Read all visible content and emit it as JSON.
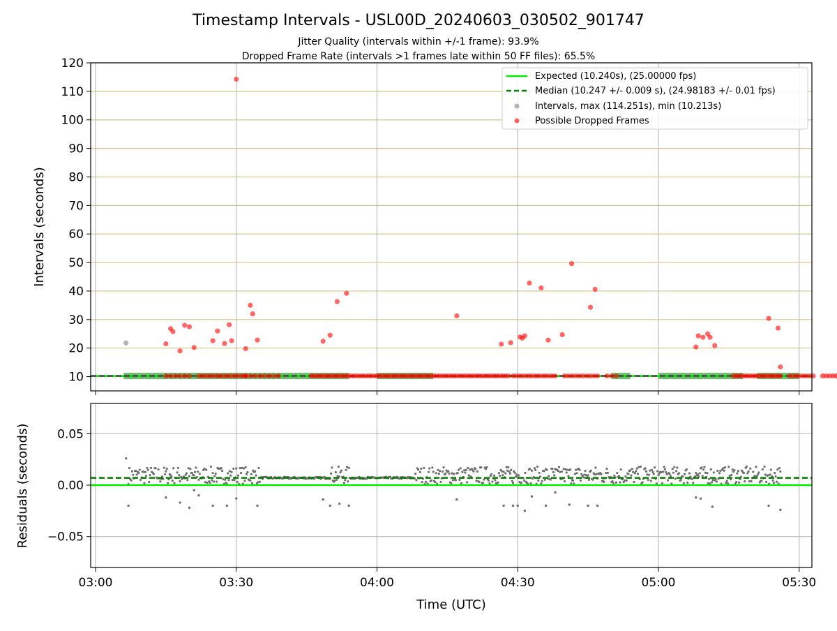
{
  "figure": {
    "title": "Timestamp Intervals - USL00D_20240603_030502_901747",
    "subtitle_1": "Jitter Quality (intervals within +/-1 frame): 93.9%",
    "subtitle_2": "Dropped Frame Rate (intervals >1 frames late within 50 FF files): 65.5%"
  },
  "colors": {
    "expected": "#00ee00",
    "median": "#008000",
    "intervals": "#808080",
    "dropped": "#ff0000",
    "hgrid": "#d4c48a",
    "vgrid": "#b0b0b0"
  },
  "chart_data": [
    {
      "type": "scatter",
      "ylabel": "Intervals (seconds)",
      "ylim": [
        5,
        120
      ],
      "xlim": [
        "03:00",
        "05:30"
      ],
      "y_ticks": [
        "10",
        "20",
        "30",
        "40",
        "50",
        "60",
        "70",
        "80",
        "90",
        "100",
        "110",
        "120"
      ],
      "x_ticks": [
        "03:00",
        "03:30",
        "04:00",
        "04:30",
        "05:00",
        "05:30"
      ],
      "grid": "on",
      "legend_position": "top-right",
      "legend": {
        "expected": "Expected (10.240s), (25.00000 fps)",
        "median": "Median (10.247 +/- 0.009 s), (24.98183 +/- 0.01 fps)",
        "intervals": "Intervals, max (114.251s), min (10.213s)",
        "dropped": "Possible Dropped Frames"
      },
      "expected_value": 10.24,
      "median_value": 10.247,
      "series": [
        {
          "name": "Intervals, max (114.251s), min (10.213s)",
          "points": [
            [
              "03:06:30",
              21.8
            ]
          ]
        },
        {
          "name": "Possible Dropped Frames",
          "points": [
            [
              "03:15:00",
              21.5
            ],
            [
              "03:16:00",
              26.8
            ],
            [
              "03:16:30",
              25.8
            ],
            [
              "03:18:00",
              19.0
            ],
            [
              "03:19:00",
              28.0
            ],
            [
              "03:20:00",
              27.5
            ],
            [
              "03:21:00",
              20.2
            ],
            [
              "03:25:00",
              22.6
            ],
            [
              "03:26:00",
              26.0
            ],
            [
              "03:27:30",
              21.6
            ],
            [
              "03:28:30",
              28.2
            ],
            [
              "03:29:00",
              22.6
            ],
            [
              "03:30:00",
              114.25
            ],
            [
              "03:32:00",
              19.8
            ],
            [
              "03:33:00",
              35.0
            ],
            [
              "03:33:30",
              32.0
            ],
            [
              "03:34:30",
              22.8
            ],
            [
              "03:48:30",
              22.4
            ],
            [
              "03:50:00",
              24.5
            ],
            [
              "03:51:30",
              36.3
            ],
            [
              "03:53:30",
              39.2
            ],
            [
              "04:17:00",
              31.3
            ],
            [
              "04:26:30",
              21.4
            ],
            [
              "04:28:30",
              21.9
            ],
            [
              "04:30:30",
              23.9
            ],
            [
              "04:31:00",
              23.5
            ],
            [
              "04:31:30",
              24.3
            ],
            [
              "04:32:30",
              42.8
            ],
            [
              "04:35:00",
              41.1
            ],
            [
              "04:36:30",
              22.8
            ],
            [
              "04:39:30",
              24.7
            ],
            [
              "04:41:30",
              49.6
            ],
            [
              "04:45:30",
              34.3
            ],
            [
              "04:46:30",
              40.6
            ],
            [
              "05:08:00",
              20.4
            ],
            [
              "05:08:30",
              24.3
            ],
            [
              "05:09:30",
              23.8
            ],
            [
              "05:10:30",
              25.0
            ],
            [
              "05:11:00",
              23.8
            ],
            [
              "05:12:00",
              20.9
            ],
            [
              "05:23:30",
              30.4
            ],
            [
              "05:25:30",
              27.0
            ],
            [
              "05:26:00",
              13.4
            ]
          ]
        }
      ]
    },
    {
      "type": "scatter",
      "ylabel": "Residuals (seconds)",
      "xlabel": "Time (UTC)",
      "ylim": [
        -0.08,
        0.08
      ],
      "y_ticks": [
        "−0.05",
        "0.00",
        "0.05"
      ],
      "x_ticks": [
        "03:00",
        "03:30",
        "04:00",
        "04:30",
        "05:00",
        "05:30"
      ],
      "grid": "on",
      "expected_residual": 0.0,
      "median_residual": 0.007,
      "series": [
        {
          "name": "residuals",
          "outliers": [
            [
              "03:06:30",
              0.026
            ],
            [
              "03:07:00",
              -0.02
            ],
            [
              "03:15:00",
              -0.012
            ],
            [
              "03:18:00",
              -0.017
            ],
            [
              "03:20:00",
              -0.022
            ],
            [
              "03:21:00",
              -0.005
            ],
            [
              "03:22:00",
              -0.01
            ],
            [
              "03:25:00",
              -0.02
            ],
            [
              "03:28:00",
              -0.02
            ],
            [
              "03:30:00",
              -0.013
            ],
            [
              "03:34:30",
              -0.02
            ],
            [
              "03:48:30",
              -0.014
            ],
            [
              "03:50:00",
              -0.02
            ],
            [
              "03:52:00",
              -0.018
            ],
            [
              "03:54:00",
              -0.02
            ],
            [
              "04:17:00",
              -0.014
            ],
            [
              "04:27:00",
              -0.02
            ],
            [
              "04:29:00",
              -0.02
            ],
            [
              "04:30:00",
              -0.02
            ],
            [
              "04:31:30",
              -0.025
            ],
            [
              "04:33:00",
              -0.011
            ],
            [
              "04:36:00",
              -0.02
            ],
            [
              "04:38:00",
              -0.007
            ],
            [
              "04:41:00",
              -0.019
            ],
            [
              "04:45:00",
              -0.02
            ],
            [
              "04:47:00",
              -0.02
            ],
            [
              "05:08:00",
              -0.012
            ],
            [
              "05:09:00",
              -0.013
            ],
            [
              "05:11:30",
              -0.021
            ],
            [
              "05:23:30",
              -0.02
            ],
            [
              "05:26:00",
              -0.024
            ]
          ]
        }
      ]
    }
  ]
}
